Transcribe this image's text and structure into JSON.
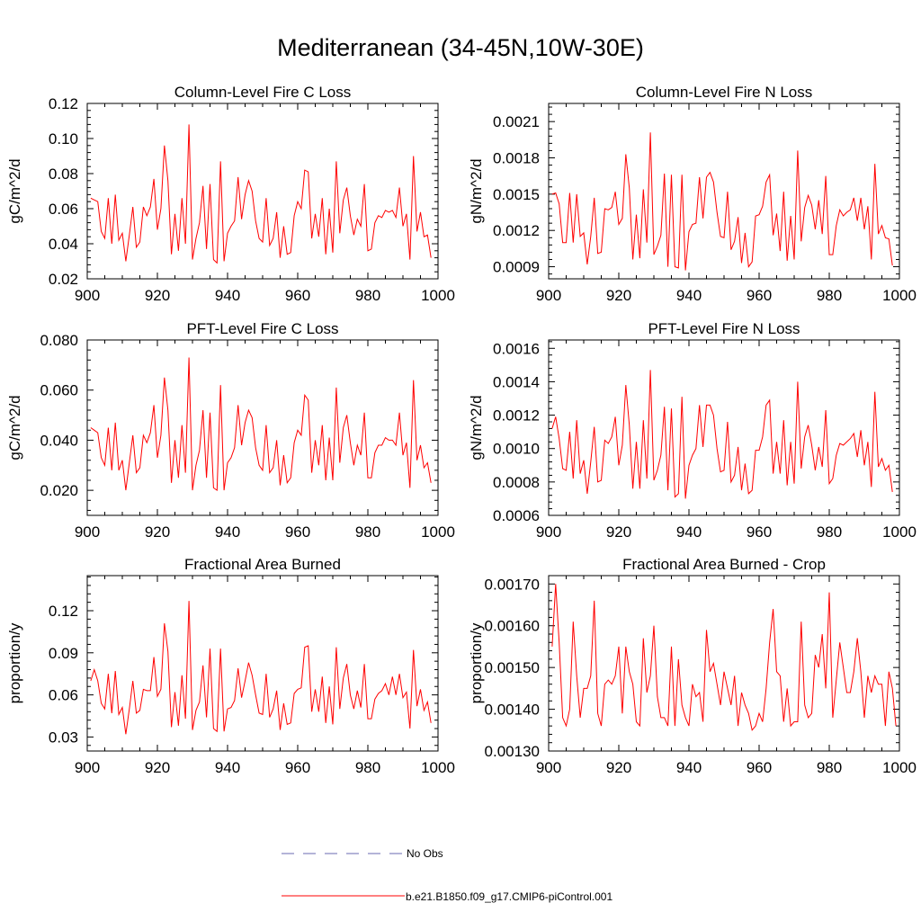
{
  "figure": {
    "title": "Mediterranean (34-45N,10W-30E)",
    "line_color": "#ff0000",
    "legend": [
      {
        "label": "No Obs",
        "style": "dashed",
        "color": "#6a6ab0"
      },
      {
        "label": "b.e21.B1850.f09_g17.CMIP6-piControl.001",
        "style": "solid",
        "color": "#ff0000"
      }
    ]
  },
  "chart_data": [
    {
      "type": "line",
      "title": "Column-Level Fire C Loss",
      "ylabel": "gC/m^2/d",
      "xlim": [
        900,
        1000
      ],
      "ylim": [
        0.02,
        0.12
      ],
      "xticks": [
        "900",
        "920",
        "940",
        "960",
        "980",
        "1000"
      ],
      "yticks": [
        "0.02",
        "0.04",
        "0.06",
        "0.08",
        "0.10",
        "0.12"
      ],
      "x_start": 901,
      "values": [
        0.066,
        0.065,
        0.064,
        0.047,
        0.043,
        0.066,
        0.04,
        0.068,
        0.042,
        0.046,
        0.03,
        0.045,
        0.061,
        0.038,
        0.041,
        0.061,
        0.056,
        0.061,
        0.077,
        0.048,
        0.06,
        0.096,
        0.076,
        0.034,
        0.057,
        0.036,
        0.066,
        0.04,
        0.108,
        0.031,
        0.043,
        0.052,
        0.073,
        0.037,
        0.074,
        0.031,
        0.029,
        0.087,
        0.03,
        0.046,
        0.05,
        0.053,
        0.078,
        0.054,
        0.068,
        0.076,
        0.07,
        0.053,
        0.043,
        0.041,
        0.066,
        0.039,
        0.043,
        0.058,
        0.032,
        0.05,
        0.034,
        0.035,
        0.056,
        0.064,
        0.06,
        0.082,
        0.081,
        0.043,
        0.057,
        0.044,
        0.066,
        0.034,
        0.06,
        0.035,
        0.087,
        0.046,
        0.065,
        0.072,
        0.056,
        0.045,
        0.054,
        0.05,
        0.074,
        0.036,
        0.037,
        0.052,
        0.056,
        0.055,
        0.059,
        0.058,
        0.059,
        0.055,
        0.072,
        0.05,
        0.057,
        0.031,
        0.09,
        0.047,
        0.058,
        0.044,
        0.045,
        0.032
      ]
    },
    {
      "type": "line",
      "title": "Column-Level Fire N Loss",
      "ylabel": "gN/m^2/d",
      "xlim": [
        900,
        1000
      ],
      "ylim": [
        0.0008,
        0.00225
      ],
      "xticks": [
        "900",
        "920",
        "940",
        "960",
        "980",
        "1000"
      ],
      "yticks": [
        "0.0009",
        "0.0012",
        "0.0015",
        "0.0018",
        "0.0021"
      ],
      "x_start": 901,
      "values": [
        0.0015,
        0.00151,
        0.00142,
        0.0011,
        0.0011,
        0.00151,
        0.0011,
        0.0015,
        0.00115,
        0.00118,
        0.00092,
        0.00115,
        0.00147,
        0.00101,
        0.00102,
        0.00138,
        0.00137,
        0.00139,
        0.00152,
        0.00125,
        0.0013,
        0.00183,
        0.00155,
        0.00096,
        0.00133,
        0.00097,
        0.00154,
        0.0011,
        0.00201,
        0.001,
        0.00107,
        0.00116,
        0.00167,
        0.0009,
        0.00166,
        0.0009,
        0.00089,
        0.00166,
        0.00087,
        0.00119,
        0.00125,
        0.00126,
        0.00164,
        0.0013,
        0.00164,
        0.00168,
        0.0016,
        0.00135,
        0.00115,
        0.00114,
        0.00152,
        0.00104,
        0.00111,
        0.00131,
        0.00093,
        0.00118,
        0.0009,
        0.00094,
        0.00132,
        0.00133,
        0.0014,
        0.0016,
        0.00166,
        0.00116,
        0.00134,
        0.00103,
        0.00152,
        0.00095,
        0.00132,
        0.00096,
        0.00186,
        0.00111,
        0.00139,
        0.00149,
        0.00141,
        0.00121,
        0.00145,
        0.00117,
        0.00165,
        0.001,
        0.001,
        0.00124,
        0.00137,
        0.00132,
        0.00135,
        0.00137,
        0.00147,
        0.00128,
        0.00147,
        0.00121,
        0.0014,
        0.00096,
        0.00175,
        0.00117,
        0.00124,
        0.00114,
        0.00113,
        0.00091
      ]
    },
    {
      "type": "line",
      "title": "PFT-Level Fire C Loss",
      "ylabel": "gC/m^2/d",
      "xlim": [
        900,
        1000
      ],
      "ylim": [
        0.01,
        0.08
      ],
      "xticks": [
        "900",
        "920",
        "940",
        "960",
        "980",
        "1000"
      ],
      "yticks": [
        "0.020",
        "0.040",
        "0.060",
        "0.080"
      ],
      "x_start": 901,
      "values": [
        0.045,
        0.044,
        0.043,
        0.033,
        0.03,
        0.045,
        0.028,
        0.047,
        0.028,
        0.032,
        0.02,
        0.031,
        0.042,
        0.027,
        0.029,
        0.042,
        0.039,
        0.043,
        0.054,
        0.033,
        0.042,
        0.065,
        0.052,
        0.023,
        0.04,
        0.025,
        0.046,
        0.027,
        0.073,
        0.02,
        0.03,
        0.036,
        0.052,
        0.025,
        0.051,
        0.021,
        0.02,
        0.062,
        0.02,
        0.031,
        0.033,
        0.037,
        0.054,
        0.038,
        0.047,
        0.052,
        0.049,
        0.037,
        0.03,
        0.028,
        0.046,
        0.027,
        0.029,
        0.04,
        0.022,
        0.034,
        0.023,
        0.025,
        0.039,
        0.044,
        0.042,
        0.058,
        0.056,
        0.027,
        0.04,
        0.03,
        0.046,
        0.024,
        0.041,
        0.024,
        0.061,
        0.031,
        0.045,
        0.05,
        0.039,
        0.03,
        0.038,
        0.034,
        0.051,
        0.025,
        0.025,
        0.035,
        0.038,
        0.038,
        0.041,
        0.04,
        0.04,
        0.038,
        0.051,
        0.034,
        0.039,
        0.021,
        0.064,
        0.032,
        0.038,
        0.029,
        0.031,
        0.023
      ]
    },
    {
      "type": "line",
      "title": "PFT-Level Fire N Loss",
      "ylabel": "gN/m^2/d",
      "xlim": [
        900,
        1000
      ],
      "ylim": [
        0.0006,
        0.00165
      ],
      "xticks": [
        "900",
        "920",
        "940",
        "960",
        "980",
        "1000"
      ],
      "yticks": [
        "0.0006",
        "0.0008",
        "0.0010",
        "0.0012",
        "0.0014",
        "0.0016"
      ],
      "x_start": 901,
      "values": [
        0.00112,
        0.00119,
        0.00106,
        0.00088,
        0.00087,
        0.0011,
        0.00082,
        0.00117,
        0.00085,
        0.00093,
        0.00073,
        0.00092,
        0.00113,
        0.0008,
        0.00081,
        0.00105,
        0.00103,
        0.00107,
        0.00119,
        0.0009,
        0.00102,
        0.00138,
        0.00114,
        0.00076,
        0.00104,
        0.00076,
        0.00117,
        0.00082,
        0.00147,
        0.00081,
        0.00087,
        0.00096,
        0.00125,
        0.00075,
        0.00124,
        0.00071,
        0.00073,
        0.00131,
        0.0007,
        0.0009,
        0.00096,
        0.001,
        0.00126,
        0.00101,
        0.00126,
        0.00126,
        0.0012,
        0.001,
        0.00086,
        0.00087,
        0.00116,
        0.0008,
        0.00084,
        0.00101,
        0.00075,
        0.00091,
        0.00073,
        0.00075,
        0.00099,
        0.00099,
        0.00107,
        0.00126,
        0.00129,
        0.00085,
        0.00104,
        0.00085,
        0.00117,
        0.00078,
        0.00104,
        0.00079,
        0.0014,
        0.00088,
        0.00107,
        0.00114,
        0.00102,
        0.00087,
        0.00101,
        0.00089,
        0.00123,
        0.00079,
        0.00082,
        0.00096,
        0.00103,
        0.00102,
        0.00104,
        0.00106,
        0.00109,
        0.00095,
        0.00111,
        0.0009,
        0.00104,
        0.00077,
        0.00134,
        0.00089,
        0.00094,
        0.00087,
        0.0009,
        0.00074
      ]
    },
    {
      "type": "line",
      "title": "Fractional Area Burned",
      "ylabel": "proportion/y",
      "xlim": [
        900,
        1000
      ],
      "ylim": [
        0.02,
        0.145
      ],
      "xticks": [
        "900",
        "920",
        "940",
        "960",
        "980",
        "1000"
      ],
      "yticks": [
        "0.03",
        "0.06",
        "0.09",
        "0.12"
      ],
      "x_start": 901,
      "values": [
        0.07,
        0.078,
        0.07,
        0.054,
        0.05,
        0.075,
        0.047,
        0.077,
        0.046,
        0.051,
        0.032,
        0.05,
        0.07,
        0.047,
        0.049,
        0.064,
        0.063,
        0.063,
        0.087,
        0.059,
        0.064,
        0.111,
        0.091,
        0.037,
        0.062,
        0.038,
        0.074,
        0.043,
        0.127,
        0.035,
        0.049,
        0.055,
        0.081,
        0.044,
        0.093,
        0.036,
        0.034,
        0.093,
        0.034,
        0.05,
        0.051,
        0.056,
        0.079,
        0.058,
        0.07,
        0.083,
        0.074,
        0.06,
        0.047,
        0.046,
        0.075,
        0.044,
        0.05,
        0.063,
        0.035,
        0.054,
        0.039,
        0.04,
        0.061,
        0.064,
        0.065,
        0.094,
        0.095,
        0.048,
        0.064,
        0.048,
        0.073,
        0.04,
        0.066,
        0.039,
        0.094,
        0.05,
        0.072,
        0.082,
        0.06,
        0.05,
        0.063,
        0.051,
        0.082,
        0.043,
        0.043,
        0.057,
        0.061,
        0.063,
        0.068,
        0.06,
        0.073,
        0.06,
        0.075,
        0.058,
        0.062,
        0.036,
        0.092,
        0.052,
        0.064,
        0.049,
        0.055,
        0.04
      ]
    },
    {
      "type": "line",
      "title": "Fractional Area Burned - Crop",
      "ylabel": "proportion/y",
      "xlim": [
        900,
        1000
      ],
      "ylim": [
        0.0013,
        0.00172
      ],
      "xticks": [
        "900",
        "920",
        "940",
        "960",
        "980",
        "1000"
      ],
      "yticks": [
        "0.00130",
        "0.00140",
        "0.00150",
        "0.00160",
        "0.00170"
      ],
      "x_start": 901,
      "values": [
        0.00155,
        0.0017,
        0.00156,
        0.00138,
        0.00136,
        0.0014,
        0.00161,
        0.00148,
        0.00138,
        0.00145,
        0.00145,
        0.00148,
        0.00166,
        0.00139,
        0.00136,
        0.00146,
        0.00147,
        0.00146,
        0.00148,
        0.00155,
        0.00139,
        0.00155,
        0.00149,
        0.00146,
        0.00137,
        0.00136,
        0.00157,
        0.00144,
        0.00148,
        0.0016,
        0.00143,
        0.00138,
        0.00138,
        0.00136,
        0.00155,
        0.00136,
        0.00152,
        0.00141,
        0.00138,
        0.00136,
        0.00146,
        0.00143,
        0.00144,
        0.00137,
        0.00159,
        0.00149,
        0.00151,
        0.00146,
        0.00141,
        0.00149,
        0.00145,
        0.00141,
        0.00148,
        0.00136,
        0.00144,
        0.00141,
        0.00139,
        0.00135,
        0.00136,
        0.00139,
        0.00137,
        0.00145,
        0.00156,
        0.00164,
        0.00149,
        0.00148,
        0.00137,
        0.00145,
        0.00136,
        0.00137,
        0.00137,
        0.00161,
        0.00141,
        0.00138,
        0.00139,
        0.00153,
        0.0015,
        0.00158,
        0.00145,
        0.00168,
        0.00138,
        0.00147,
        0.00156,
        0.0015,
        0.00144,
        0.00144,
        0.00149,
        0.00157,
        0.00149,
        0.00138,
        0.00148,
        0.00144,
        0.00148,
        0.00146,
        0.00146,
        0.00136,
        0.00149,
        0.00145,
        0.00136
      ]
    }
  ]
}
